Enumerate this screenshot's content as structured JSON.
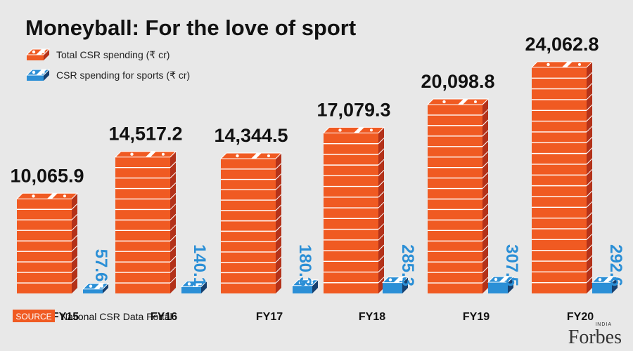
{
  "chart_data": {
    "type": "bar",
    "title": "Moneyball: For the love of sport",
    "categories": [
      "FY15",
      "FY16",
      "FY17",
      "FY18",
      "FY19",
      "FY20"
    ],
    "series": [
      {
        "name": "Total CSR spending (₹ cr)",
        "values": [
          10065.9,
          14517.2,
          14344.5,
          17079.3,
          20098.8,
          24062.8
        ],
        "labels": [
          "10,065.9",
          "14,517.2",
          "14,344.5",
          "17,079.3",
          "20,098.8",
          "24,062.8"
        ],
        "color": "#f05a22"
      },
      {
        "name": "CSR spending for sports (₹ cr)",
        "values": [
          57.6,
          140.1,
          180.3,
          285.3,
          307.5,
          292.6
        ],
        "labels": [
          "57.6",
          "140.1",
          "180.3",
          "285.3",
          "307.5",
          "292.6"
        ],
        "color": "#2b8fd6"
      }
    ],
    "ylim": [
      0,
      26000
    ]
  },
  "source": {
    "tag": "SOURCE",
    "text": "National CSR Data Portal"
  },
  "brand": {
    "logo": "Forbes",
    "edition": "INDIA"
  },
  "colors": {
    "orange": "#f05a22",
    "orange_dark": "#b3321a",
    "blue": "#2b8fd6",
    "blue_dark": "#17406f",
    "background": "#e8e8e8"
  }
}
